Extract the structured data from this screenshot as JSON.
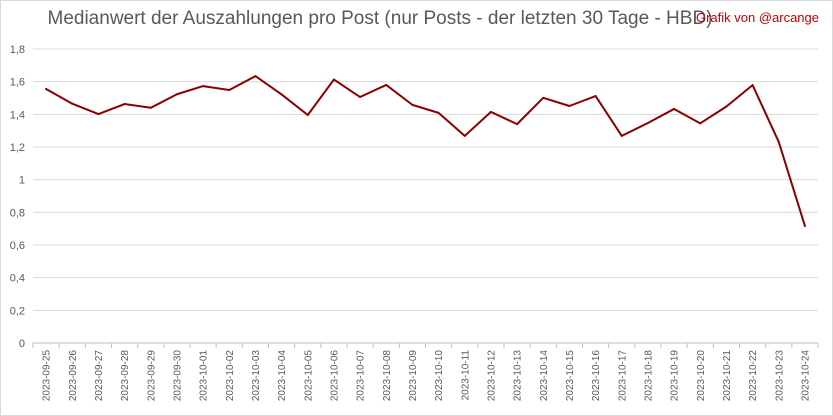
{
  "chart_data": {
    "type": "line",
    "title": "Medianwert der Auszahlungen pro Post (nur Posts - der letzten 30 Tage - HBD)",
    "annotation": "Grafik von @arcange",
    "xlabel": "",
    "ylabel": "",
    "ylim": [
      0,
      1.8
    ],
    "yticks": [
      "0",
      "0,2",
      "0,4",
      "0,6",
      "0,8",
      "1",
      "1,2",
      "1,4",
      "1,6",
      "1,8"
    ],
    "grid": true,
    "legend": "none",
    "line_color": "#8b0000",
    "categories": [
      "2023-09-25",
      "2023-09-26",
      "2023-09-27",
      "2023-09-28",
      "2023-09-29",
      "2023-09-30",
      "2023-10-01",
      "2023-10-02",
      "2023-10-03",
      "2023-10-04",
      "2023-10-05",
      "2023-10-06",
      "2023-10-07",
      "2023-10-08",
      "2023-10-09",
      "2023-10-10",
      "2023-10-11",
      "2023-10-12",
      "2023-10-13",
      "2023-10-14",
      "2023-10-15",
      "2023-10-16",
      "2023-10-17",
      "2023-10-18",
      "2023-10-19",
      "2023-10-20",
      "2023-10-21",
      "2023-10-22",
      "2023-10-23",
      "2023-10-24"
    ],
    "values": [
      1.555,
      1.465,
      1.402,
      1.463,
      1.44,
      1.523,
      1.573,
      1.549,
      1.634,
      1.522,
      1.396,
      1.613,
      1.506,
      1.58,
      1.458,
      1.409,
      1.268,
      1.415,
      1.34,
      1.501,
      1.451,
      1.512,
      1.268,
      1.347,
      1.433,
      1.345,
      1.448,
      1.579,
      1.231,
      0.717
    ]
  }
}
